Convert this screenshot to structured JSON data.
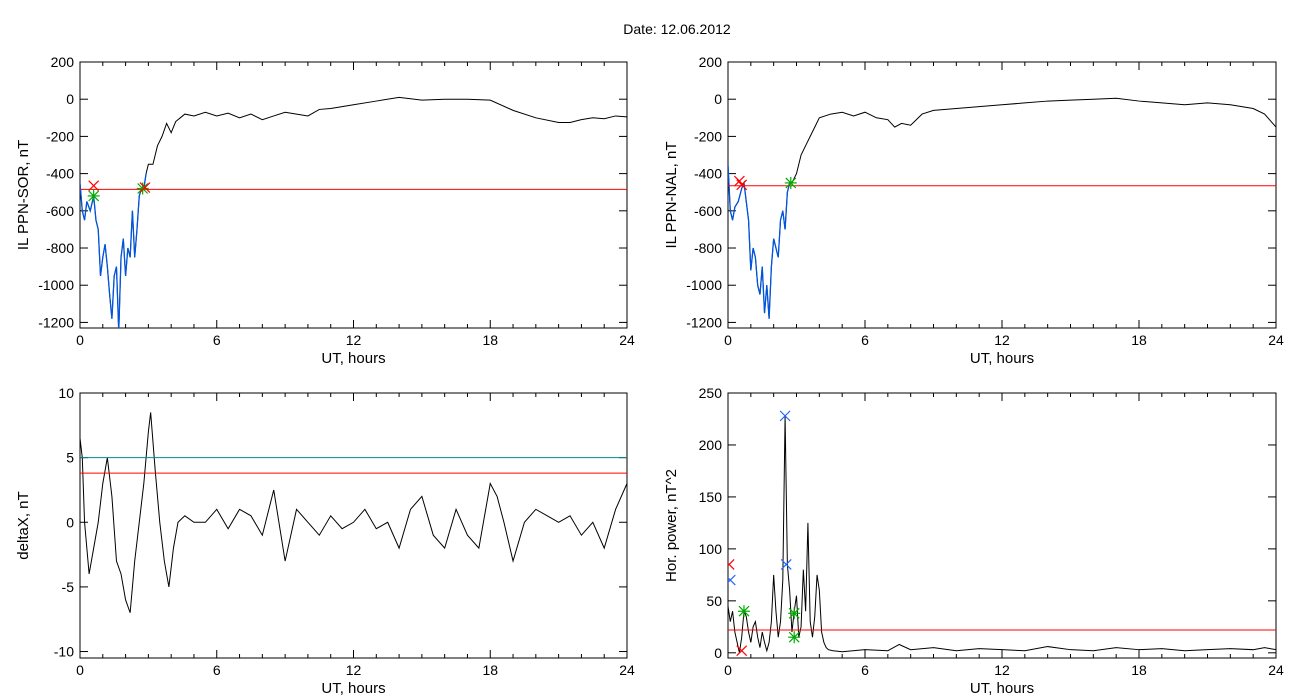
{
  "figure": {
    "title": "Date:  12.06.2012"
  },
  "colors": {
    "data": "#000000",
    "threshold": "#ff0000",
    "highlight": "#0055dd",
    "cyan": "#008b8b",
    "green": "#00aa00",
    "blue_marker": "#2266ff"
  },
  "chart_data": [
    {
      "id": "sor",
      "type": "line",
      "xlabel": "UT, hours",
      "ylabel": "IL PPN-SOR, nT",
      "xlim": [
        0,
        24
      ],
      "ylim": [
        -1230,
        200
      ],
      "xticks": [
        0,
        6,
        12,
        18,
        24
      ],
      "yticks": [
        -1200,
        -1000,
        -800,
        -600,
        -400,
        -200,
        0,
        200
      ],
      "x": [
        0,
        0.1,
        0.2,
        0.3,
        0.45,
        0.6,
        0.7,
        0.8,
        0.9,
        1.0,
        1.1,
        1.2,
        1.3,
        1.4,
        1.5,
        1.6,
        1.7,
        1.8,
        1.9,
        2.0,
        2.1,
        2.2,
        2.3,
        2.4,
        2.5,
        2.6,
        2.7,
        2.8,
        2.9,
        3.0,
        3.2,
        3.4,
        3.6,
        3.8,
        4.0,
        4.2,
        4.4,
        4.6,
        5,
        5.5,
        6,
        6.5,
        7,
        7.5,
        8,
        8.5,
        9,
        9.5,
        10,
        10.5,
        11,
        12,
        13,
        14,
        15,
        16,
        17,
        18,
        19,
        20,
        21,
        21.5,
        22,
        22.5,
        23,
        23.5,
        24
      ],
      "y": [
        -450,
        -600,
        -650,
        -550,
        -600,
        -520,
        -650,
        -700,
        -950,
        -850,
        -780,
        -900,
        -1050,
        -1180,
        -950,
        -900,
        -1250,
        -850,
        -750,
        -950,
        -800,
        -850,
        -600,
        -850,
        -700,
        -520,
        -480,
        -480,
        -400,
        -350,
        -350,
        -250,
        -200,
        -130,
        -180,
        -120,
        -100,
        -80,
        -90,
        -70,
        -90,
        -75,
        -100,
        -80,
        -110,
        -90,
        -70,
        -80,
        -90,
        -55,
        -50,
        -30,
        -10,
        10,
        -5,
        0,
        0,
        -5,
        -60,
        -100,
        -125,
        -125,
        -110,
        -100,
        -105,
        -90,
        -95
      ],
      "series": [
        {
          "x_from": 0,
          "x_to": 2.9
        }
      ],
      "thresholds": [
        {
          "y": -485
        }
      ],
      "markers": [
        {
          "x": 0.6,
          "y": -465,
          "symbol": "x",
          "color": "#ff0000"
        },
        {
          "x": 0.6,
          "y": -520,
          "symbol": "*",
          "color": "#00aa00"
        },
        {
          "x": 2.75,
          "y": -480,
          "symbol": "*",
          "color": "#00aa00"
        },
        {
          "x": 2.85,
          "y": -475,
          "symbol": "x",
          "color": "#ff0000"
        }
      ]
    },
    {
      "id": "nal",
      "type": "line",
      "xlabel": "UT, hours",
      "ylabel": "IL PPN-NAL, nT",
      "xlim": [
        0,
        24
      ],
      "ylim": [
        -1230,
        200
      ],
      "xticks": [
        0,
        6,
        12,
        18,
        24
      ],
      "yticks": [
        -1200,
        -1000,
        -800,
        -600,
        -400,
        -200,
        0,
        200
      ],
      "x": [
        0,
        0.1,
        0.2,
        0.3,
        0.45,
        0.6,
        0.7,
        0.8,
        0.9,
        1.0,
        1.1,
        1.2,
        1.3,
        1.4,
        1.5,
        1.6,
        1.7,
        1.8,
        1.9,
        2.0,
        2.1,
        2.2,
        2.3,
        2.4,
        2.5,
        2.6,
        2.7,
        2.8,
        3.0,
        3.2,
        3.4,
        3.6,
        3.8,
        4.0,
        4.5,
        5,
        5.5,
        6,
        6.5,
        7,
        7.3,
        7.6,
        8,
        8.5,
        9,
        10,
        11,
        12,
        13,
        14,
        15,
        16,
        17,
        18,
        19,
        20,
        21,
        22,
        23,
        23.5,
        24
      ],
      "y": [
        -350,
        -600,
        -650,
        -580,
        -550,
        -480,
        -450,
        -550,
        -650,
        -920,
        -800,
        -850,
        -1000,
        -1050,
        -900,
        -1150,
        -1000,
        -1180,
        -900,
        -750,
        -800,
        -850,
        -650,
        -600,
        -700,
        -500,
        -450,
        -450,
        -400,
        -300,
        -250,
        -200,
        -150,
        -100,
        -80,
        -70,
        -90,
        -70,
        -100,
        -110,
        -150,
        -130,
        -140,
        -80,
        -60,
        -50,
        -40,
        -30,
        -20,
        -10,
        -5,
        0,
        5,
        -10,
        -20,
        -30,
        -20,
        -30,
        -50,
        -80,
        -150
      ],
      "series": [
        {
          "x_from": 0,
          "x_to": 2.8
        }
      ],
      "thresholds": [
        {
          "y": -465
        }
      ],
      "markers": [
        {
          "x": 0.5,
          "y": -440,
          "symbol": "x",
          "color": "#ff0000"
        },
        {
          "x": 0.6,
          "y": -460,
          "symbol": "x",
          "color": "#ff0000"
        },
        {
          "x": 2.75,
          "y": -450,
          "symbol": "*",
          "color": "#00aa00"
        }
      ]
    },
    {
      "id": "deltax",
      "type": "line",
      "xlabel": "UT, hours",
      "ylabel": "deltaX, nT",
      "xlim": [
        0,
        24
      ],
      "ylim": [
        -10.5,
        10
      ],
      "xticks": [
        0,
        6,
        12,
        18,
        24
      ],
      "yticks": [
        -10,
        -5,
        0,
        5,
        10
      ],
      "x": [
        0,
        0.1,
        0.2,
        0.4,
        0.6,
        0.8,
        1.0,
        1.2,
        1.4,
        1.6,
        1.8,
        2.0,
        2.2,
        2.4,
        2.6,
        2.8,
        3.0,
        3.1,
        3.3,
        3.5,
        3.7,
        3.9,
        4.1,
        4.3,
        4.6,
        5.0,
        5.5,
        6,
        6.5,
        7,
        7.5,
        8,
        8.5,
        9,
        9.5,
        10,
        10.5,
        11,
        11.5,
        12,
        12.5,
        13,
        13.5,
        14,
        14.5,
        15,
        15.5,
        16,
        16.5,
        17,
        17.5,
        18,
        18.3,
        18.6,
        19,
        19.5,
        20,
        20.5,
        21,
        21.5,
        22,
        22.5,
        23,
        23.5,
        24
      ],
      "y": [
        6.5,
        5,
        0,
        -4,
        -2,
        0,
        3,
        5,
        2,
        -3,
        -4,
        -6,
        -7,
        -3,
        0,
        3,
        7,
        8.5,
        4,
        0,
        -3,
        -5,
        -2,
        0,
        0.5,
        0,
        0,
        1,
        -0.5,
        1,
        0.5,
        -1,
        2.5,
        -3,
        1,
        0,
        -1,
        0.5,
        -0.5,
        0,
        1,
        -0.5,
        0,
        -2,
        1,
        2,
        -1,
        -2,
        1,
        -1,
        -2,
        3,
        2,
        0,
        -3,
        0,
        1,
        0.5,
        0,
        0.5,
        -1,
        0,
        -2,
        1,
        3
      ],
      "thresholds": [
        {
          "y": 5,
          "color": "#008b8b"
        },
        {
          "y": 3.8,
          "color": "#ff0000"
        }
      ]
    },
    {
      "id": "power",
      "type": "line",
      "xlabel": "UT, hours",
      "ylabel": "Hor. power, nT^2",
      "xlim": [
        0,
        24
      ],
      "ylim": [
        -5,
        250
      ],
      "xticks": [
        0,
        6,
        12,
        18,
        24
      ],
      "yticks": [
        0,
        50,
        100,
        150,
        200,
        250
      ],
      "x": [
        0,
        0.1,
        0.2,
        0.3,
        0.4,
        0.5,
        0.6,
        0.7,
        0.8,
        0.9,
        1.0,
        1.1,
        1.2,
        1.3,
        1.4,
        1.5,
        1.6,
        1.7,
        1.8,
        1.9,
        2.0,
        2.1,
        2.2,
        2.3,
        2.4,
        2.5,
        2.6,
        2.7,
        2.8,
        2.9,
        3.0,
        3.1,
        3.2,
        3.3,
        3.4,
        3.5,
        3.6,
        3.7,
        3.8,
        3.9,
        4.0,
        4.1,
        4.2,
        4.3,
        4.4,
        4.6,
        5.0,
        6,
        7,
        7.5,
        8,
        9,
        10,
        11,
        12,
        13,
        14,
        15,
        16,
        17,
        18,
        19,
        20,
        21,
        22,
        23,
        23.5,
        24
      ],
      "y": [
        45,
        30,
        40,
        20,
        10,
        0,
        15,
        40,
        35,
        20,
        10,
        25,
        30,
        15,
        5,
        20,
        10,
        2,
        10,
        30,
        75,
        40,
        15,
        30,
        70,
        228,
        85,
        60,
        20,
        40,
        55,
        15,
        25,
        80,
        40,
        125,
        30,
        15,
        35,
        75,
        60,
        20,
        10,
        5,
        3,
        2,
        1,
        3,
        2,
        8,
        3,
        5,
        2,
        4,
        3,
        2,
        6,
        3,
        2,
        5,
        3,
        4,
        2,
        3,
        4,
        3,
        5,
        3
      ],
      "thresholds": [
        {
          "y": 22
        }
      ],
      "markers": [
        {
          "x": 0.05,
          "y": 85,
          "symbol": "x",
          "color": "#ff0000"
        },
        {
          "x": 0.1,
          "y": 70,
          "symbol": "x",
          "color": "#2266ff"
        },
        {
          "x": 0.6,
          "y": 2,
          "symbol": "x",
          "color": "#ff0000"
        },
        {
          "x": 0.7,
          "y": 40,
          "symbol": "*",
          "color": "#00aa00"
        },
        {
          "x": 2.5,
          "y": 228,
          "symbol": "x",
          "color": "#2266ff"
        },
        {
          "x": 2.55,
          "y": 85,
          "symbol": "x",
          "color": "#2266ff"
        },
        {
          "x": 2.9,
          "y": 38,
          "symbol": "*",
          "color": "#00aa00"
        },
        {
          "x": 2.9,
          "y": 15,
          "symbol": "*",
          "color": "#00aa00"
        }
      ]
    }
  ]
}
